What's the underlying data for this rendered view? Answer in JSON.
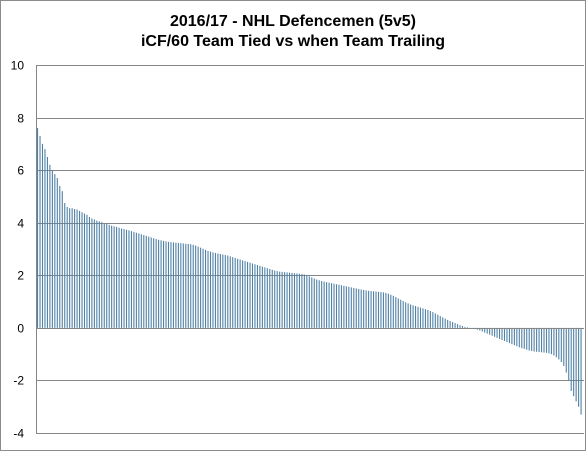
{
  "chart_data": {
    "type": "bar",
    "title": "2016/17 - NHL Defencemen (5v5)",
    "subtitle": "iCF/60 Team Tied vs when Team Trailing",
    "xlabel": "",
    "ylabel": "",
    "ylim": [
      -4,
      10
    ],
    "y_ticks": [
      "10",
      "8",
      "6",
      "4",
      "2",
      "0",
      "-2",
      "-4"
    ],
    "grid": "horizontal",
    "legend": "none",
    "bar_color": "#4f81a6",
    "grid_color": "#868686",
    "values": [
      7.6,
      7.3,
      7.0,
      6.8,
      6.5,
      6.2,
      6.0,
      5.85,
      5.7,
      5.4,
      5.2,
      4.75,
      4.6,
      4.55,
      4.55,
      4.52,
      4.5,
      4.45,
      4.4,
      4.35,
      4.3,
      4.22,
      4.16,
      4.12,
      4.08,
      4.05,
      4.02,
      3.98,
      3.95,
      3.92,
      3.89,
      3.86,
      3.84,
      3.81,
      3.78,
      3.76,
      3.73,
      3.71,
      3.68,
      3.65,
      3.62,
      3.59,
      3.56,
      3.53,
      3.5,
      3.47,
      3.44,
      3.41,
      3.38,
      3.35,
      3.33,
      3.31,
      3.29,
      3.27,
      3.26,
      3.25,
      3.24,
      3.23,
      3.22,
      3.21,
      3.2,
      3.19,
      3.18,
      3.16,
      3.13,
      3.09,
      3.05,
      3.01,
      2.97,
      2.93,
      2.9,
      2.87,
      2.85,
      2.83,
      2.81,
      2.79,
      2.77,
      2.75,
      2.72,
      2.69,
      2.66,
      2.63,
      2.6,
      2.57,
      2.54,
      2.51,
      2.48,
      2.45,
      2.42,
      2.39,
      2.36,
      2.33,
      2.3,
      2.27,
      2.24,
      2.21,
      2.18,
      2.16,
      2.14,
      2.13,
      2.12,
      2.11,
      2.1,
      2.09,
      2.08,
      2.07,
      2.06,
      2.05,
      2.03,
      2.0,
      1.96,
      1.92,
      1.88,
      1.84,
      1.81,
      1.78,
      1.76,
      1.74,
      1.72,
      1.7,
      1.68,
      1.66,
      1.64,
      1.62,
      1.6,
      1.58,
      1.56,
      1.54,
      1.52,
      1.5,
      1.48,
      1.46,
      1.44,
      1.42,
      1.41,
      1.4,
      1.39,
      1.38,
      1.37,
      1.36,
      1.35,
      1.33,
      1.3,
      1.26,
      1.22,
      1.17,
      1.12,
      1.07,
      1.02,
      0.97,
      0.93,
      0.89,
      0.86,
      0.83,
      0.8,
      0.77,
      0.74,
      0.71,
      0.68,
      0.64,
      0.6,
      0.55,
      0.5,
      0.45,
      0.4,
      0.35,
      0.3,
      0.26,
      0.22,
      0.18,
      0.14,
      0.1,
      0.07,
      0.04,
      0.02,
      0.0,
      -0.02,
      -0.04,
      -0.07,
      -0.1,
      -0.14,
      -0.18,
      -0.22,
      -0.26,
      -0.3,
      -0.34,
      -0.38,
      -0.42,
      -0.46,
      -0.5,
      -0.54,
      -0.58,
      -0.62,
      -0.66,
      -0.7,
      -0.74,
      -0.77,
      -0.8,
      -0.83,
      -0.86,
      -0.88,
      -0.9,
      -0.91,
      -0.92,
      -0.93,
      -0.94,
      -0.95,
      -0.97,
      -1.0,
      -1.05,
      -1.12,
      -1.2,
      -1.3,
      -1.45,
      -1.7,
      -2.0,
      -2.4,
      -2.6,
      -2.8,
      -3.0,
      -3.3
    ]
  }
}
